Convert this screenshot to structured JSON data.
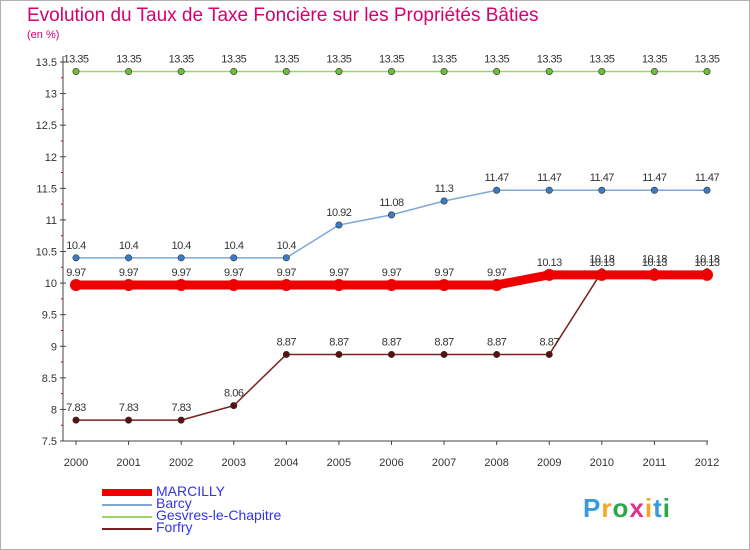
{
  "title": "Evolution du Taux de Taxe Foncière sur les Propriétés Bâties",
  "unit_label": "(en %)",
  "logo_text": "Proxiti",
  "chart_data": {
    "type": "line",
    "title": "Evolution du Taux de Taxe Foncière sur les Propriétés Bâties",
    "ylabel": "(en %)",
    "xlabel": "",
    "x": [
      "2000",
      "2001",
      "2002",
      "2003",
      "2004",
      "2005",
      "2006",
      "2007",
      "2008",
      "2009",
      "2010",
      "2011",
      "2012"
    ],
    "ylim": [
      7.5,
      13.5
    ],
    "yticks": [
      7.5,
      8,
      8.5,
      9,
      9.5,
      10,
      10.5,
      11,
      11.5,
      12,
      12.5,
      13,
      13.5
    ],
    "ytick_labels": [
      "7.5",
      "8",
      "8.5",
      "9",
      "9.5",
      "10",
      "10.5",
      "11",
      "11.5",
      "12",
      "12.5",
      "13",
      "13.5"
    ],
    "grid": false,
    "legend_position": "bottom-left",
    "series": [
      {
        "name": "Forfry",
        "color": "#7a2222",
        "marker": "#5a1010",
        "values": [
          7.83,
          7.83,
          7.83,
          8.06,
          8.87,
          8.87,
          8.87,
          8.87,
          8.87,
          8.87,
          10.18,
          10.18,
          10.18
        ],
        "labels": [
          "7.83",
          "7.83",
          "7.83",
          "8.06",
          "8.87",
          "8.87",
          "8.87",
          "8.87",
          "8.87",
          "8.87",
          "10.18",
          "10.18",
          "10.18"
        ]
      },
      {
        "name": "Gesvres-le-Chapitre",
        "color": "#9ad46a",
        "marker": "#6dbf3a",
        "values": [
          13.35,
          13.35,
          13.35,
          13.35,
          13.35,
          13.35,
          13.35,
          13.35,
          13.35,
          13.35,
          13.35,
          13.35,
          13.35
        ],
        "labels": [
          "13.35",
          "13.35",
          "13.35",
          "13.35",
          "13.35",
          "13.35",
          "13.35",
          "13.35",
          "13.35",
          "13.35",
          "13.35",
          "13.35",
          "13.35"
        ]
      },
      {
        "name": "Barcy",
        "color": "#7fa9d4",
        "marker": "#3a7dc4",
        "values": [
          10.4,
          10.4,
          10.4,
          10.4,
          10.4,
          10.92,
          11.08,
          11.3,
          11.47,
          11.47,
          11.47,
          11.47,
          11.47
        ],
        "labels": [
          "10.4",
          "10.4",
          "10.4",
          "10.4",
          "10.4",
          "10.92",
          "11.08",
          "11.3",
          "11.47",
          "11.47",
          "11.47",
          "11.47",
          "11.47"
        ]
      },
      {
        "name": "MARCILLY",
        "color": "#ee0000",
        "marker": "#ee0000",
        "values": [
          9.97,
          9.97,
          9.97,
          9.97,
          9.97,
          9.97,
          9.97,
          9.97,
          9.97,
          10.13,
          10.13,
          10.13,
          10.13
        ],
        "labels": [
          "9.97",
          "9.97",
          "9.97",
          "9.97",
          "9.97",
          "9.97",
          "9.97",
          "9.97",
          "9.97",
          "10.13",
          "10.13",
          "10.13",
          "10.13"
        ]
      }
    ],
    "legend_order": [
      "MARCILLY",
      "Barcy",
      "Gesvres-le-Chapitre",
      "Forfry"
    ]
  }
}
